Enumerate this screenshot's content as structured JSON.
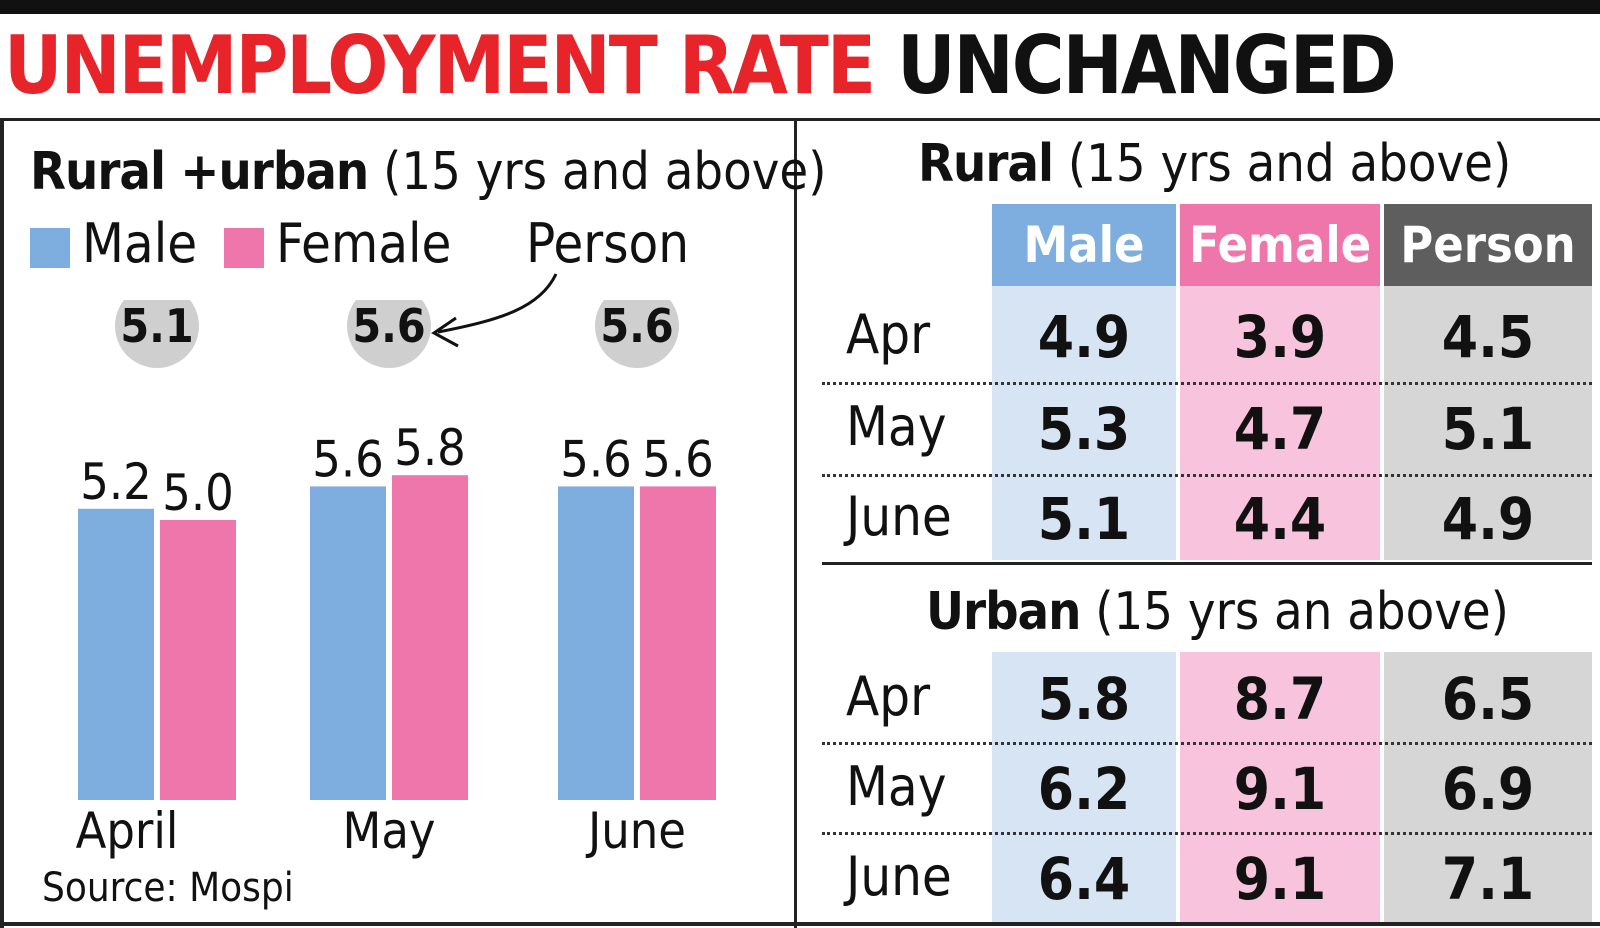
{
  "title": {
    "red": "UNEMPLOYMENT RATE",
    "black": "UNCHANGED"
  },
  "colors": {
    "male": "#7eaee0",
    "female": "#ef76aa",
    "person": "#5e5e5e",
    "male_light": "#d6e4f4",
    "female_light": "#f8c3dc",
    "person_light": "#d6d6d6",
    "accent_red": "#e8242b"
  },
  "left_panel": {
    "title_bold": "Rural +urban",
    "title_rest": "(15 yrs and above)",
    "legend": {
      "male": "Male",
      "female": "Female",
      "person": "Person"
    },
    "source": "Source: Mospi"
  },
  "right_panel": {
    "rural": {
      "title_bold": "Rural",
      "title_rest": "(15 yrs and above)",
      "headers": [
        "Male",
        "Female",
        "Person"
      ],
      "rows": [
        {
          "label": "Apr",
          "values": [
            "4.9",
            "3.9",
            "4.5"
          ]
        },
        {
          "label": "May",
          "values": [
            "5.3",
            "4.7",
            "5.1"
          ]
        },
        {
          "label": "June",
          "values": [
            "5.1",
            "4.4",
            "4.9"
          ]
        }
      ]
    },
    "urban": {
      "title_bold": "Urban",
      "title_rest": "(15 yrs an above)",
      "rows": [
        {
          "label": "Apr",
          "values": [
            "5.8",
            "8.7",
            "6.5"
          ]
        },
        {
          "label": "May",
          "values": [
            "6.2",
            "9.1",
            "6.9"
          ]
        },
        {
          "label": "June",
          "values": [
            "6.4",
            "9.1",
            "7.1"
          ]
        }
      ]
    }
  },
  "chart_data": {
    "type": "bar",
    "title": "Rural +urban (15 yrs and above)",
    "categories": [
      "April",
      "May",
      "June"
    ],
    "series": [
      {
        "name": "Male",
        "values": [
          5.2,
          5.6,
          5.6
        ]
      },
      {
        "name": "Female",
        "values": [
          5.0,
          5.8,
          5.6
        ]
      }
    ],
    "person": [
      5.1,
      5.6,
      5.6
    ],
    "grid": false,
    "legend_position": "top-left"
  }
}
